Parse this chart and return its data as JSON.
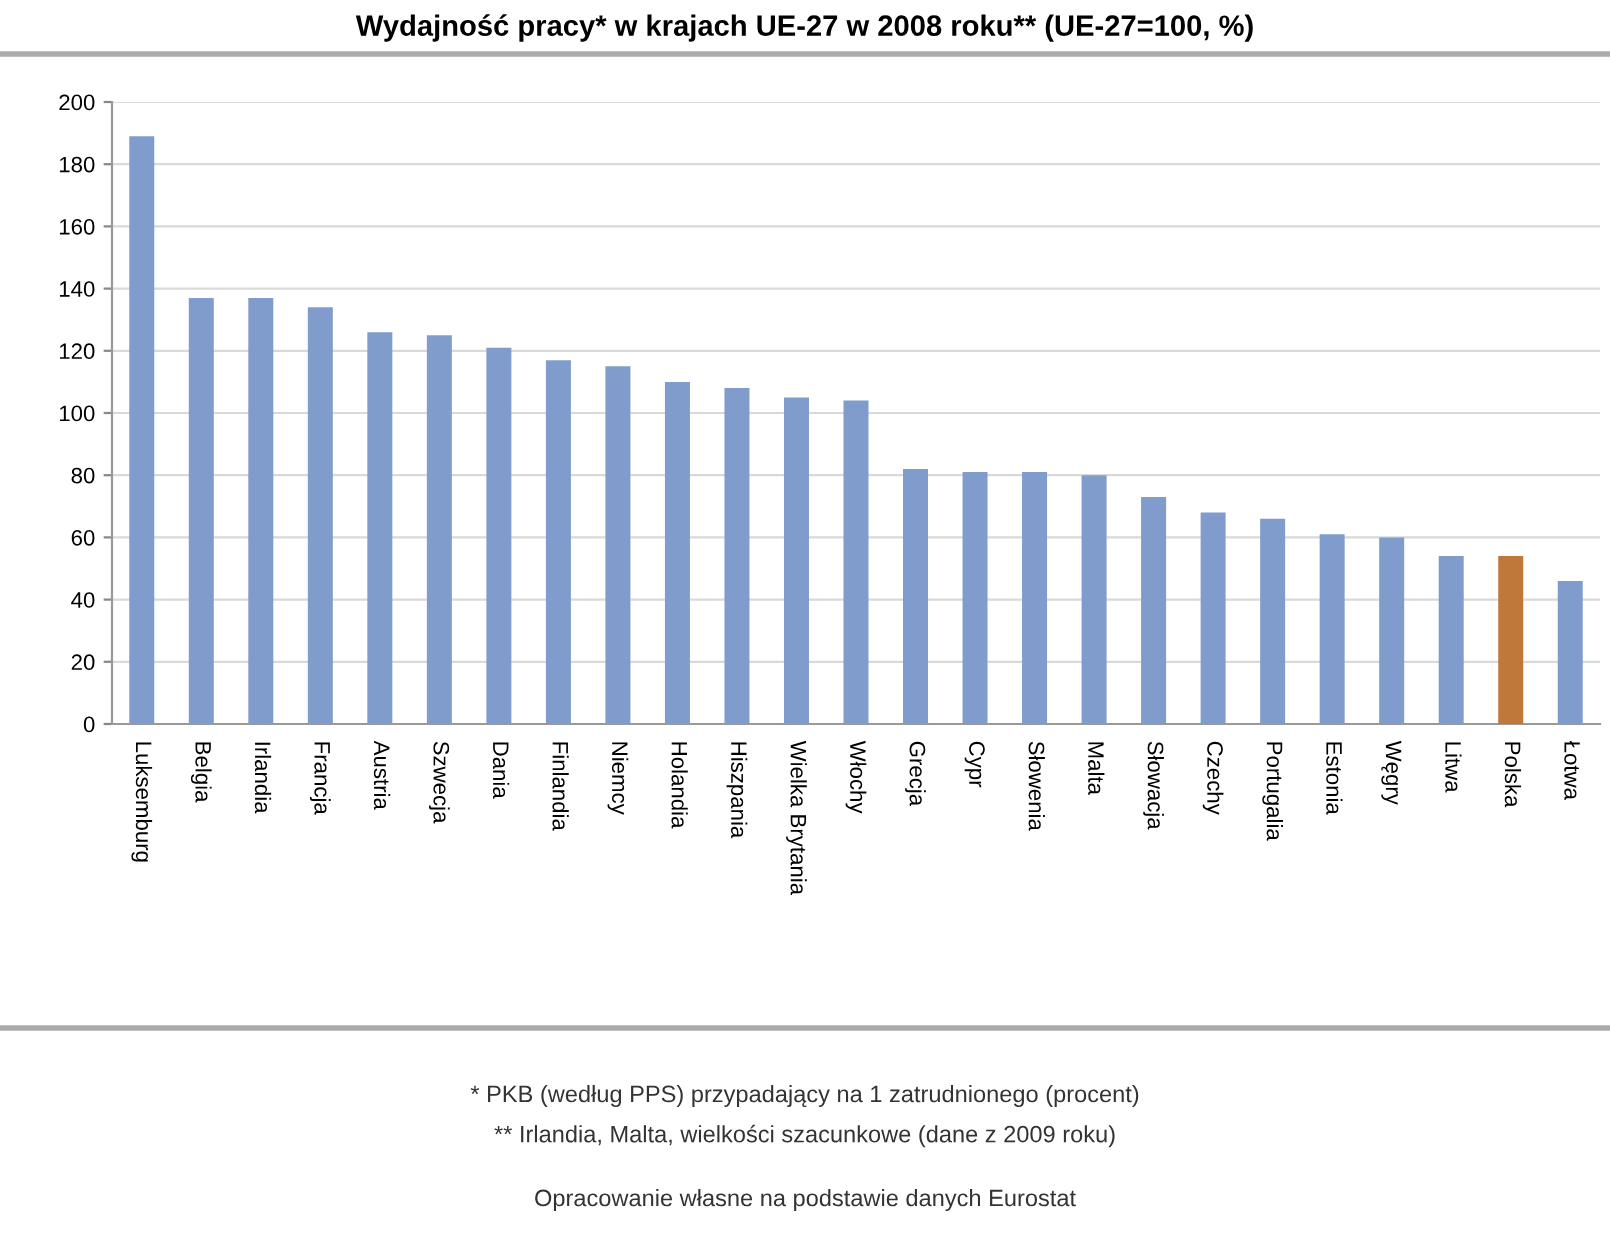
{
  "chart_data": {
    "type": "bar",
    "title": "Wydajność pracy* w krajach UE-27 w 2008 roku** (UE-27=100, %)",
    "categories": [
      "Luksemburg",
      "Belgia",
      "Irlandia",
      "Francja",
      "Austria",
      "Szwecja",
      "Dania",
      "Finlandia",
      "Niemcy",
      "Holandia",
      "Hiszpania",
      "Wielka Brytania",
      "Włochy",
      "Grecja",
      "Cypr",
      "Słowenia",
      "Malta",
      "Słowacja",
      "Czechy",
      "Portugalia",
      "Estonia",
      "Węgry",
      "Litwa",
      "Polska",
      "Łotwa"
    ],
    "values": [
      189,
      137,
      137,
      134,
      126,
      125,
      121,
      117,
      115,
      110,
      108,
      105,
      104,
      82,
      81,
      81,
      80,
      73,
      68,
      66,
      61,
      60,
      54,
      54,
      46
    ],
    "colors": [
      "#7f9ccc",
      "#7f9ccc",
      "#7f9ccc",
      "#7f9ccc",
      "#7f9ccc",
      "#7f9ccc",
      "#7f9ccc",
      "#7f9ccc",
      "#7f9ccc",
      "#7f9ccc",
      "#7f9ccc",
      "#7f9ccc",
      "#7f9ccc",
      "#7f9ccc",
      "#7f9ccc",
      "#7f9ccc",
      "#7f9ccc",
      "#7f9ccc",
      "#7f9ccc",
      "#7f9ccc",
      "#7f9ccc",
      "#7f9ccc",
      "#7f9ccc",
      "#c0783a",
      "#7f9ccc"
    ],
    "ylim": [
      0,
      200
    ],
    "yticks": [
      0,
      20,
      40,
      60,
      80,
      100,
      120,
      140,
      160,
      180,
      200
    ],
    "grid": "y",
    "annotations": [
      "* PKB (według PPS) przypadający na 1 zatrudnionego (procent)",
      "** Irlandia, Malta, wielkości szacunkowe (dane z 2009 roku)",
      "Opracowanie własne na podstawie danych Eurostat"
    ]
  }
}
